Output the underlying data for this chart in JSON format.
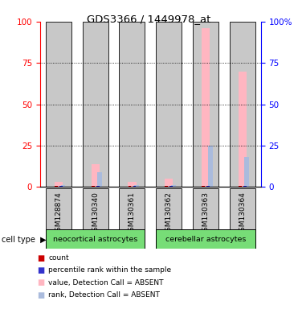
{
  "title": "GDS3366 / 1449978_at",
  "samples": [
    "GSM128874",
    "GSM130340",
    "GSM130361",
    "GSM130362",
    "GSM130363",
    "GSM130364"
  ],
  "bar_bg_color": "#C8C8C8",
  "value_absent_color": "#FFB6C1",
  "rank_absent_color": "#AABBDD",
  "count_color": "#CC0000",
  "percentile_color": "#3333CC",
  "value_absent": [
    3,
    14,
    3,
    5,
    96,
    70
  ],
  "rank_absent": [
    1,
    9,
    1,
    1,
    25,
    18
  ],
  "count_vals": [
    0.5,
    0.5,
    0.5,
    0.5,
    0.5,
    0.5
  ],
  "percentile_vals": [
    0.5,
    0.5,
    0.5,
    0.5,
    0.5,
    0.5
  ],
  "ylim": [
    0,
    100
  ],
  "yticks": [
    0,
    25,
    50,
    75,
    100
  ],
  "green_color": "#77DD77",
  "background_color": "#FFFFFF",
  "neo_indices": [
    0,
    1,
    2
  ],
  "cer_indices": [
    3,
    4,
    5
  ]
}
